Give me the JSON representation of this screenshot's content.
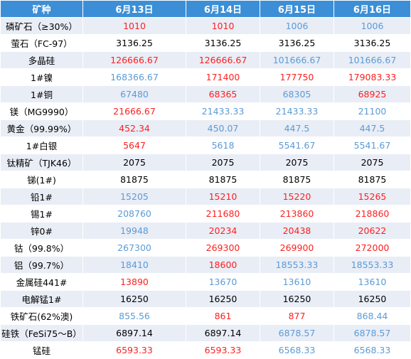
{
  "colors": {
    "header_bg": "#3c8fd6",
    "up": "#ff1e1e",
    "down": "#5b9bd5",
    "flat": "#000000"
  },
  "table": {
    "headers": [
      "矿种",
      "6月13日",
      "6月14日",
      "6月15日",
      "6月16日"
    ],
    "rows": [
      {
        "name": "磷矿石（≥30%）",
        "values": [
          "1010",
          "1010",
          "1006",
          "1006"
        ],
        "colors": [
          "red",
          "red",
          "blue",
          "blue"
        ]
      },
      {
        "name": "萤石（FC-97）",
        "values": [
          "3136.25",
          "3136.25",
          "3136.25",
          "3136.25"
        ],
        "colors": [
          "black",
          "black",
          "black",
          "black"
        ]
      },
      {
        "name": "多晶硅",
        "values": [
          "126666.67",
          "126666.67",
          "101666.67",
          "101666.67"
        ],
        "colors": [
          "red",
          "red",
          "blue",
          "blue"
        ]
      },
      {
        "name": "1#镍",
        "values": [
          "168366.67",
          "171400",
          "177750",
          "179083.33"
        ],
        "colors": [
          "blue",
          "red",
          "red",
          "red"
        ]
      },
      {
        "name": "1#铜",
        "values": [
          "67480",
          "68365",
          "68305",
          "68925"
        ],
        "colors": [
          "blue",
          "red",
          "blue",
          "red"
        ]
      },
      {
        "name": "镁（MG9990）",
        "values": [
          "21666.67",
          "21433.33",
          "21433.33",
          "21100"
        ],
        "colors": [
          "red",
          "blue",
          "blue",
          "blue"
        ]
      },
      {
        "name": "黄金（99.99%）",
        "values": [
          "452.34",
          "450.07",
          "447.5",
          "447.5"
        ],
        "colors": [
          "red",
          "blue",
          "blue",
          "blue"
        ]
      },
      {
        "name": "1#白银",
        "values": [
          "5647",
          "5618",
          "5541.67",
          "5541.67"
        ],
        "colors": [
          "red",
          "blue",
          "blue",
          "blue"
        ]
      },
      {
        "name": "钛精矿（TJK46）",
        "values": [
          "2075",
          "2075",
          "2075",
          "2075"
        ],
        "colors": [
          "black",
          "black",
          "black",
          "black"
        ]
      },
      {
        "name": "锑(1#)",
        "values": [
          "81875",
          "81875",
          "81875",
          "81875"
        ],
        "colors": [
          "black",
          "black",
          "black",
          "black"
        ]
      },
      {
        "name": "铅1#",
        "values": [
          "15205",
          "15210",
          "15220",
          "15265"
        ],
        "colors": [
          "blue",
          "red",
          "red",
          "red"
        ]
      },
      {
        "name": "锡1#",
        "values": [
          "208760",
          "211680",
          "213860",
          "218860"
        ],
        "colors": [
          "blue",
          "red",
          "red",
          "red"
        ]
      },
      {
        "name": "锌0#",
        "values": [
          "19948",
          "20234",
          "20438",
          "20622"
        ],
        "colors": [
          "blue",
          "red",
          "red",
          "red"
        ]
      },
      {
        "name": "钴（99.8%）",
        "values": [
          "267300",
          "269300",
          "269900",
          "272000"
        ],
        "colors": [
          "blue",
          "red",
          "red",
          "red"
        ]
      },
      {
        "name": "铝（99.7%）",
        "values": [
          "18410",
          "18600",
          "18553.33",
          "18553.33"
        ],
        "colors": [
          "blue",
          "red",
          "blue",
          "blue"
        ]
      },
      {
        "name": "金属硅441#",
        "values": [
          "13890",
          "13670",
          "13610",
          "13610"
        ],
        "colors": [
          "red",
          "blue",
          "blue",
          "blue"
        ]
      },
      {
        "name": "电解锰1#",
        "values": [
          "16250",
          "16250",
          "16250",
          "16250"
        ],
        "colors": [
          "black",
          "black",
          "black",
          "black"
        ]
      },
      {
        "name": "铁矿石(62%澳)",
        "values": [
          "855.56",
          "861",
          "877",
          "868.44"
        ],
        "colors": [
          "blue",
          "red",
          "red",
          "blue"
        ]
      },
      {
        "name": "硅铁（FeSi75～B）",
        "values": [
          "6897.14",
          "6897.14",
          "6878.57",
          "6878.57"
        ],
        "colors": [
          "black",
          "black",
          "blue",
          "blue"
        ]
      },
      {
        "name": "锰硅",
        "values": [
          "6593.33",
          "6593.33",
          "6568.33",
          "6568.33"
        ],
        "colors": [
          "red",
          "red",
          "blue",
          "blue"
        ]
      }
    ]
  }
}
